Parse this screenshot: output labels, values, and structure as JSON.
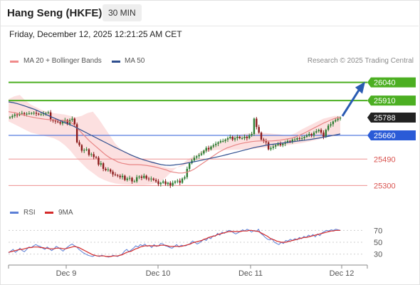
{
  "header": {
    "title": "Hang Seng (HKFE)",
    "interval": "30 MIN"
  },
  "timestamp": "Friday, December 12, 2025 12:21:25 AM CET",
  "credit": "Research © 2025 Trading Central",
  "chart_data": {
    "type": "candlestick",
    "ylim": [
      25200,
      26120
    ],
    "x_ticks": [
      "Dec 9",
      "Dec 10",
      "Dec 11",
      "Dec 12"
    ],
    "legend": {
      "ma20": "MA 20 + Bollinger Bands",
      "ma50": "MA 50"
    },
    "colors": {
      "up": "#2e7d32",
      "down": "#8b1a1a",
      "ma20": "#e88585",
      "ma50": "#2f4f8f",
      "band": "#fbd5d5",
      "resistance": "#4caf22",
      "support": "#ee9090",
      "pivot": "#2a5bd7"
    },
    "resistance_levels": [
      26040,
      25910
    ],
    "support_levels": [
      25490,
      25300
    ],
    "pivot": 25660,
    "last_price": 25788,
    "arrow_target": 26040,
    "price_labels": [
      "26040",
      "25910",
      "25788",
      "25660",
      "25490",
      "25300"
    ],
    "closes": [
      25790,
      25800,
      25810,
      25805,
      25815,
      25820,
      25812,
      25815,
      25818,
      25820,
      25822,
      25815,
      25810,
      25812,
      25818,
      25820,
      25825,
      25770,
      25765,
      25760,
      25755,
      25745,
      25760,
      25770,
      25740,
      25770,
      25780,
      25740,
      25610,
      25590,
      25550,
      25555,
      25560,
      25520,
      25525,
      25505,
      25500,
      25450,
      25460,
      25420,
      25410,
      25415,
      25400,
      25380,
      25375,
      25370,
      25360,
      25370,
      25340,
      25350,
      25355,
      25330,
      25330,
      25360,
      25365,
      25355,
      25370,
      25350,
      25345,
      25350,
      25340,
      25330,
      25310,
      25320,
      25330,
      25310,
      25320,
      25300,
      25320,
      25330,
      25335,
      25320,
      25350,
      25360,
      25420,
      25460,
      25480,
      25500,
      25510,
      25520,
      25530,
      25550,
      25570,
      25560,
      25580,
      25590,
      25600,
      25610,
      25620,
      25620,
      25630,
      25640,
      25650,
      25630,
      25640,
      25650,
      25640,
      25640,
      25650,
      25640,
      25660,
      25670,
      25780,
      25720,
      25680,
      25630,
      25620,
      25610,
      25560,
      25570,
      25580,
      25590,
      25600,
      25590,
      25600,
      25610,
      25620,
      25615,
      25630,
      25630,
      25640,
      25635,
      25640,
      25650,
      25660,
      25670,
      25660,
      25680,
      25690,
      25700,
      25680,
      25650,
      25700,
      25730,
      25740,
      25760,
      25770,
      25780,
      25788
    ],
    "ma20": [
      25830,
      25825,
      25820,
      25812,
      25804,
      25796,
      25790,
      25784,
      25780,
      25776,
      25773,
      25772,
      25770,
      25768,
      25766,
      25760,
      25740,
      25710,
      25680,
      25650,
      25620,
      25595,
      25570,
      25545,
      25520,
      25500,
      25485,
      25470,
      25460,
      25455,
      25450,
      25450,
      25450,
      25448,
      25445,
      25440,
      25435,
      25428,
      25420,
      25412,
      25400,
      25395,
      25390,
      25390,
      25395,
      25405,
      25420,
      25440,
      25460,
      25480,
      25500,
      25520,
      25540,
      25555,
      25570,
      25580,
      25590,
      25598,
      25605,
      25610,
      25615,
      25618,
      25620,
      25620,
      25620,
      25620,
      25622,
      25625,
      25630,
      25635,
      25640,
      25650,
      25662,
      25675,
      25690,
      25705,
      25720,
      25735,
      25750,
      25762,
      25775,
      25785,
      25788
    ],
    "ma50": [
      25900,
      25895,
      25888,
      25878,
      25868,
      25857,
      25846,
      25832,
      25818,
      25804,
      25790,
      25777,
      25764,
      25751,
      25738,
      25724,
      25708,
      25692,
      25676,
      25660,
      25644,
      25628,
      25612,
      25596,
      25580,
      25565,
      25550,
      25535,
      25520,
      25507,
      25495,
      25484,
      25475,
      25466,
      25458,
      25450,
      25446,
      25445,
      25448,
      25452,
      25456,
      25462,
      25468,
      25474,
      25480,
      25487,
      25494,
      25500,
      25507,
      25514,
      25522,
      25530,
      25538,
      25546,
      25554,
      25562,
      25570,
      25577,
      25583,
      25589,
      25594,
      25598,
      25602,
      25606,
      25610,
      25614,
      25618,
      25622,
      25626,
      25630,
      25635,
      25640,
      25646,
      25652,
      25658,
      25664,
      25670
    ],
    "band_upper": [
      25920,
      25940,
      25950,
      25910,
      25880,
      25860,
      25840,
      25830,
      25820,
      25815,
      25810,
      25800,
      25790,
      25800,
      25820,
      25830,
      25780,
      25720,
      25660,
      25600,
      25560,
      25540,
      25520,
      25500,
      25490,
      25480,
      25470,
      25440,
      25430,
      25425,
      25430,
      25440,
      25460,
      25500,
      25540,
      25560,
      25580,
      25600,
      25620,
      25640,
      25655,
      25665,
      25672,
      25676,
      25678,
      25678,
      25676,
      25672,
      25668,
      25662,
      25660,
      25676,
      25700,
      25720,
      25740,
      25760,
      25780,
      25790,
      25800,
      25800
    ],
    "band_lower": [
      25760,
      25740,
      25720,
      25700,
      25680,
      25670,
      25660,
      25650,
      25640,
      25620,
      25590,
      25550,
      25500,
      25460,
      25420,
      25390,
      25360,
      25340,
      25325,
      25315,
      25310,
      25308,
      25306,
      25305,
      25305,
      25308,
      25315,
      25330,
      25360,
      25400,
      25430,
      25460,
      25490,
      25510,
      25525,
      25540,
      25550,
      25555,
      25555,
      25555,
      25556,
      25558,
      25560,
      25562,
      25566,
      25570,
      25574,
      25578,
      25582,
      25586,
      25592,
      25598,
      25604,
      25612,
      25620,
      25630,
      25640,
      25650,
      25655,
      25660
    ],
    "rsi": {
      "ticks": [
        70,
        50,
        30
      ],
      "legend": {
        "rsi": "RSI",
        "ma": "9MA"
      },
      "colors": {
        "rsi": "#5b7fd6",
        "ma": "#d42a2a"
      },
      "ylim": [
        20,
        80
      ],
      "values": [
        32,
        35,
        38,
        33,
        36,
        40,
        36,
        34,
        38,
        42,
        41,
        44,
        46,
        44,
        43,
        40,
        38,
        42,
        39,
        36,
        39,
        43,
        41,
        38,
        35,
        39,
        42,
        45,
        47,
        44,
        42,
        38,
        35,
        32,
        30,
        28,
        27,
        26,
        28,
        27,
        26,
        28,
        27,
        26,
        25,
        26,
        28,
        27,
        26,
        28,
        30,
        35,
        38,
        34,
        37,
        40,
        44,
        42,
        46,
        44,
        47,
        43,
        45,
        41,
        46,
        43,
        44,
        48,
        47,
        44,
        43,
        41,
        40,
        43,
        46,
        42,
        45,
        44,
        44,
        46,
        48,
        52,
        50,
        47,
        49,
        52,
        55,
        53,
        58,
        56,
        61,
        60,
        65,
        62,
        67,
        65,
        68,
        70,
        69,
        66,
        64,
        66,
        68,
        71,
        69,
        72,
        70,
        67,
        70,
        68,
        72,
        65,
        62,
        58,
        55,
        54,
        56,
        50,
        48,
        46,
        50,
        48,
        53,
        52,
        55,
        53,
        56,
        54,
        58,
        56,
        60,
        58,
        62,
        60,
        63,
        59,
        64,
        61,
        66,
        68,
        70,
        69,
        71,
        70,
        72,
        71,
        70
      ],
      "ma_values": [
        33,
        34,
        35,
        36,
        37,
        38,
        38,
        39,
        40,
        41,
        41,
        42,
        42,
        42,
        41,
        41,
        40,
        40,
        39,
        39,
        39,
        40,
        40,
        40,
        39,
        39,
        40,
        41,
        42,
        43,
        42,
        41,
        39,
        37,
        35,
        33,
        31,
        29,
        28,
        27,
        27,
        27,
        27,
        26,
        26,
        26,
        27,
        27,
        27,
        28,
        29,
        31,
        33,
        34,
        35,
        37,
        39,
        40,
        42,
        43,
        44,
        44,
        44,
        44,
        44,
        44,
        44,
        45,
        45,
        45,
        44,
        43,
        43,
        43,
        43,
        43,
        43,
        44,
        45,
        46,
        47,
        49,
        50,
        51,
        52,
        53,
        55,
        56,
        58,
        59,
        60,
        61,
        63,
        64,
        65,
        66,
        67,
        68,
        68,
        68,
        68,
        68,
        68,
        69,
        69,
        69,
        70,
        70,
        69,
        69,
        68,
        66,
        64,
        62,
        60,
        57,
        55,
        54,
        52,
        51,
        50,
        50,
        50,
        51,
        52,
        53,
        54,
        55,
        56,
        57,
        58,
        58,
        59,
        60,
        61,
        62,
        63,
        64,
        65,
        66,
        67,
        68,
        69,
        69,
        70,
        70,
        70
      ]
    }
  }
}
